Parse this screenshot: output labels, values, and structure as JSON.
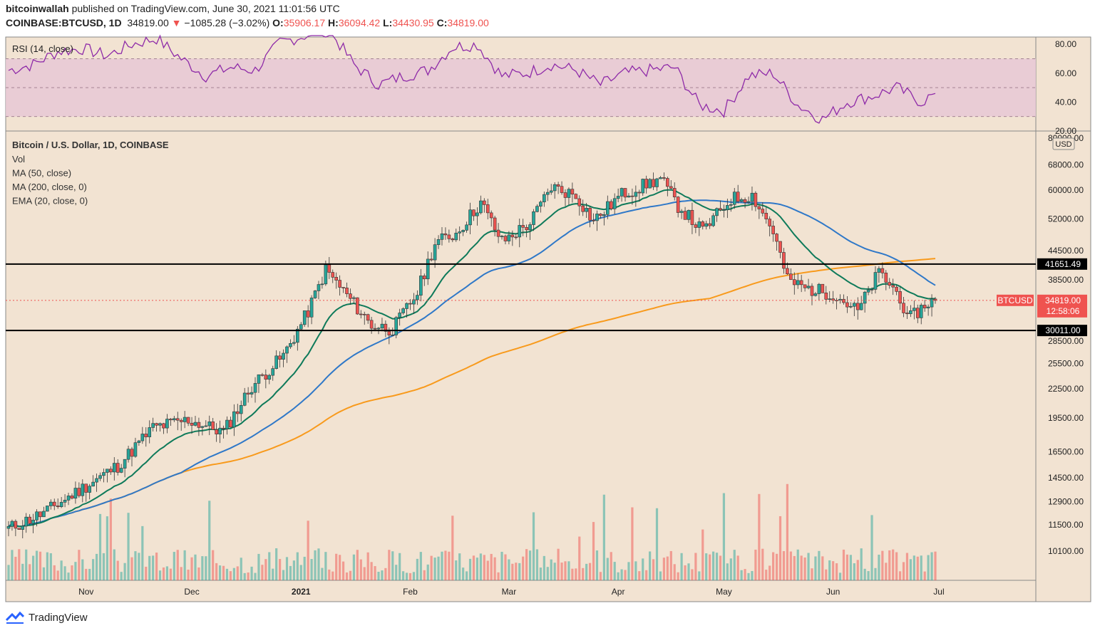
{
  "header": {
    "author": "bitcoinwallah",
    "published": "published on TradingView.com, June 30, 2021 11:01:56 UTC",
    "symbol": "COINBASE:BTCUSD, 1D",
    "last": "34819.00",
    "change_arrow": "▼",
    "change": "−1085.28 (−3.02%)",
    "o_label": "O:",
    "o": "35906.17",
    "h_label": "H:",
    "h": "36094.42",
    "l_label": "L:",
    "l": "34430.95",
    "c_label": "C:",
    "c": "34819.00"
  },
  "footer": {
    "brand": "TradingView"
  },
  "colors": {
    "background": "#f2e3d2",
    "up": "#26a69a",
    "down": "#ef5350",
    "ma50": "#2f78c8",
    "ma200": "#f89a1c",
    "ema20": "#0e7a5a",
    "rsi": "#8e2aa8",
    "rsi_band": "#e8c8d6"
  },
  "chart_data": [
    {
      "type": "line",
      "title": "RSI (14, close)",
      "ylim": [
        20,
        85
      ],
      "yticks": [
        "80.00",
        "60.00",
        "40.00",
        "20.00"
      ],
      "band": [
        30,
        70
      ],
      "x": [
        "2020-10-10",
        "2020-10-17",
        "2020-10-24",
        "2020-10-31",
        "2020-11-07",
        "2020-11-14",
        "2020-11-21",
        "2020-11-28",
        "2020-12-05",
        "2020-12-12",
        "2020-12-19",
        "2020-12-26",
        "2021-01-02",
        "2021-01-09",
        "2021-01-16",
        "2021-01-23",
        "2021-01-30",
        "2021-02-06",
        "2021-02-13",
        "2021-02-20",
        "2021-02-27",
        "2021-03-06",
        "2021-03-13",
        "2021-03-20",
        "2021-03-27",
        "2021-04-03",
        "2021-04-10",
        "2021-04-17",
        "2021-04-24",
        "2021-05-01",
        "2021-05-08",
        "2021-05-15",
        "2021-05-22",
        "2021-05-29",
        "2021-06-05",
        "2021-06-12",
        "2021-06-19",
        "2021-06-26",
        "2021-06-30"
      ],
      "series": [
        {
          "values": [
            62,
            66,
            75,
            77,
            72,
            80,
            84,
            70,
            58,
            64,
            62,
            81,
            86,
            90,
            66,
            52,
            58,
            62,
            78,
            80,
            58,
            60,
            66,
            62,
            52,
            60,
            62,
            64,
            38,
            34,
            58,
            60,
            38,
            28,
            40,
            44,
            50,
            40,
            46
          ]
        }
      ]
    },
    {
      "type": "candlestick",
      "title": "Bitcoin / U.S. Dollar, 1D, COINBASE",
      "indicators": [
        "Vol",
        "MA (50, close)",
        "MA (200, close, 0)",
        "EMA (20, close, 0)"
      ],
      "x_ticks": [
        "Nov",
        "Dec",
        "2021",
        "Feb",
        "Mar",
        "Apr",
        "May",
        "Jun",
        "Jul"
      ],
      "y_ticks": [
        "80000.00",
        "68000.00",
        "60000.00",
        "52000.00",
        "44500.00",
        "38500.00",
        "28500.00",
        "25500.00",
        "22500.00",
        "19500.00",
        "16500.00",
        "14500.00",
        "12900.00",
        "11500.00",
        "10100.00"
      ],
      "y_unit": "USD",
      "horizontal_lines": [
        41651.49,
        30011.0
      ],
      "horizontal_line_labels": [
        "41651.49",
        "30011.00"
      ],
      "last_price_label": "BTCUSD",
      "last_price": "34819.00",
      "countdown": "12:58:06",
      "price_path": {
        "dates": [
          "2020-10-10",
          "2020-10-20",
          "2020-10-31",
          "2020-11-10",
          "2020-11-20",
          "2020-11-30",
          "2020-12-10",
          "2020-12-18",
          "2020-12-27",
          "2021-01-03",
          "2021-01-08",
          "2021-01-13",
          "2021-01-21",
          "2021-01-27",
          "2021-02-03",
          "2021-02-08",
          "2021-02-14",
          "2021-02-21",
          "2021-02-27",
          "2021-03-07",
          "2021-03-13",
          "2021-03-20",
          "2021-03-25",
          "2021-04-02",
          "2021-04-13",
          "2021-04-18",
          "2021-04-25",
          "2021-05-03",
          "2021-05-09",
          "2021-05-15",
          "2021-05-19",
          "2021-05-24",
          "2021-06-01",
          "2021-06-08",
          "2021-06-14",
          "2021-06-20",
          "2021-06-22",
          "2021-06-28",
          "2021-06-30"
        ],
        "close": [
          11300,
          12200,
          13800,
          15400,
          18600,
          19300,
          18200,
          22800,
          26500,
          33000,
          40500,
          36500,
          30800,
          30200,
          36200,
          46200,
          48500,
          56500,
          46500,
          51000,
          61000,
          58500,
          51500,
          58800,
          63500,
          55500,
          49000,
          57500,
          58500,
          49000,
          38500,
          37000,
          36000,
          33000,
          40000,
          35500,
          31500,
          34500,
          34819
        ]
      },
      "ma50_endpoint": 37500,
      "ma200_endpoint": 42800,
      "ema20_endpoint": 35100
    }
  ]
}
